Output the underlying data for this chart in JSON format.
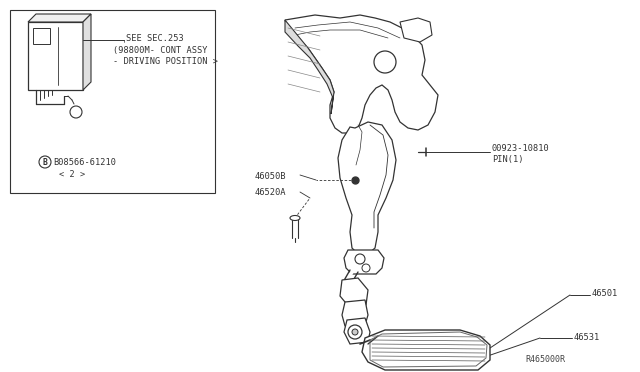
{
  "bg_color": "#ffffff",
  "line_color": "#333333",
  "fig_width": 6.4,
  "fig_height": 3.72,
  "dpi": 100,
  "ref_code": "R465000R",
  "labels": {
    "see_sec": "SEE SEC.253",
    "cont_assy": "(98800M- CONT ASSY",
    "driving_pos": "- DRIVING POSITION >",
    "bolt_num": "B08566-61210",
    "bolt_qty": "< 2 >",
    "pin_part": "00923-10810",
    "pin_label": "PIN(1)",
    "part_46050B": "46050B",
    "part_46520A": "46520A",
    "part_46501": "46501",
    "part_46531": "46531"
  }
}
